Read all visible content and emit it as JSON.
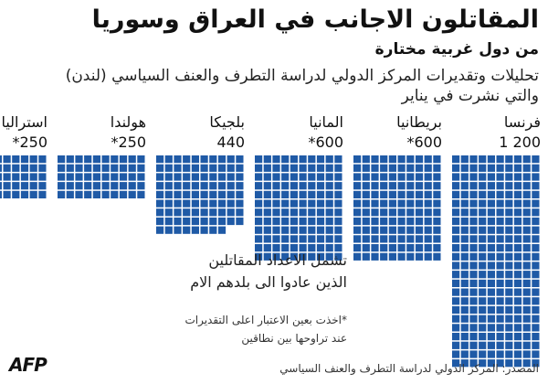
{
  "title": "المقاتلون الاجانب في العراق وسوريا",
  "subtitle": "من دول غربية مختارة",
  "description_line1": "تحليلات وتقديرات المركز الدولي لدراسة التطرف والعنف السياسي (لندن)",
  "description_line2": "والتي نشرت في يناير",
  "note_line1": "تشمل الاعداد المقاتلين",
  "note_line2": "الذين عادوا الى بلدهم الام",
  "footnote_line1": "*اخذت بعين الاعتبار اعلى التقديرات",
  "footnote_line2": "عند تراوحها بين نطاقين",
  "source": "المصدر: المركز الدولي لدراسة التطرف والعنف السياسي",
  "logo": "AFP",
  "colors": {
    "square": "#1f5aa6",
    "background": "#ffffff",
    "text": "#111111"
  },
  "chart_data": {
    "type": "pictograph",
    "unit_per_square": 5,
    "categories": [
      "فرنسا",
      "بريطانيا",
      "المانيا",
      "بلجيكا",
      "هولندا",
      "استراليا"
    ],
    "values": [
      1200,
      600,
      600,
      440,
      250,
      250
    ],
    "value_labels": [
      "1 200",
      "*600",
      "*600",
      "440",
      "*250",
      "*250"
    ]
  }
}
